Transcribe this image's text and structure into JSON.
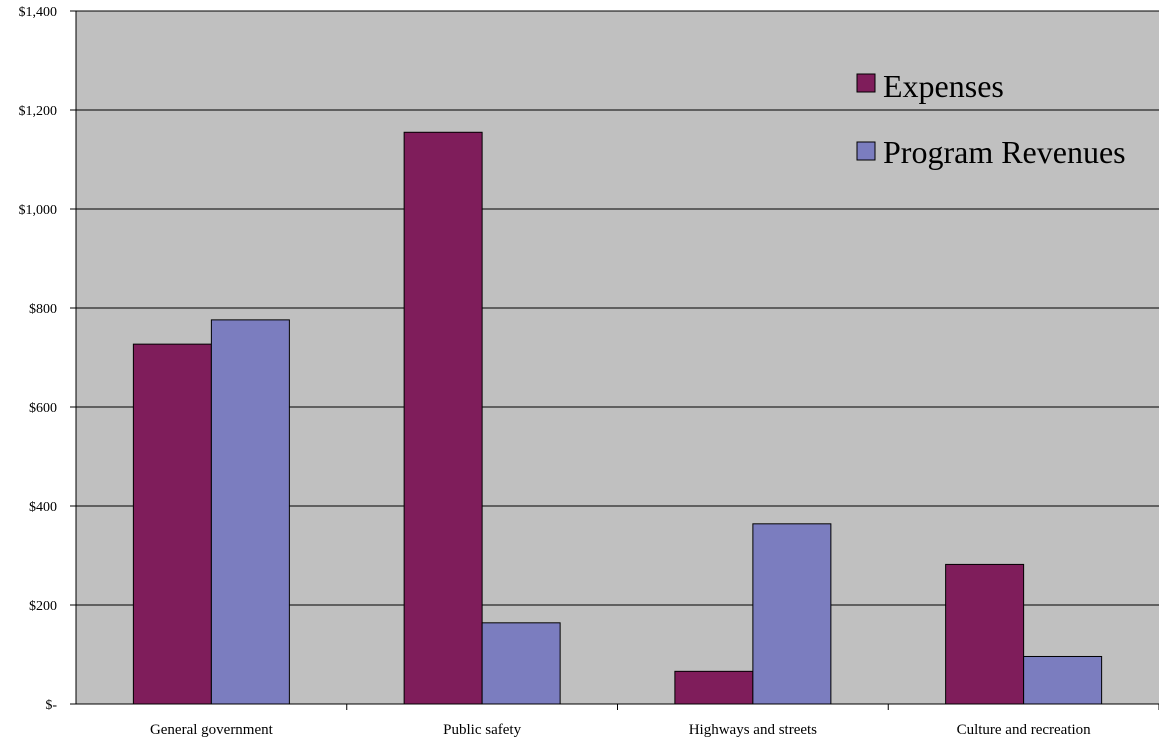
{
  "chart_data": {
    "type": "bar",
    "title": "",
    "xlabel": "",
    "ylabel": "",
    "categories": [
      "General government",
      "Public safety",
      "Highways and streets",
      "Culture and recreation"
    ],
    "series": [
      {
        "name": "Expenses",
        "values": [
          727,
          1155,
          66,
          282
        ],
        "color": "#7f1d5b"
      },
      {
        "name": "Program Revenues",
        "values": [
          776,
          164,
          364,
          96
        ],
        "color": "#7b7dbf"
      }
    ],
    "ylim": [
      0,
      1400
    ],
    "y_ticks": [
      0,
      200,
      400,
      600,
      800,
      1000,
      1200,
      1400
    ],
    "y_tick_labels": [
      "$-",
      "$200",
      "$400",
      "$600",
      "$800",
      "$1,000",
      "$1,200",
      "$1,400"
    ],
    "grid": true,
    "legend_position": "top-right",
    "plot_background": "#c0c0c0"
  }
}
